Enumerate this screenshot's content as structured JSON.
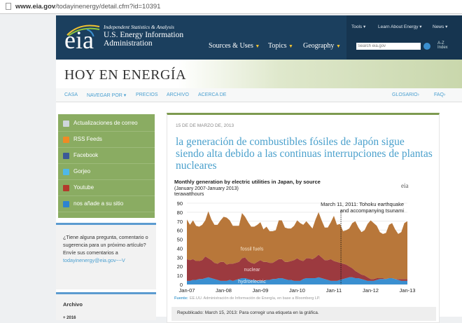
{
  "browser": {
    "url_host": "www.eia.gov",
    "url_path": "/todayinenergy/detail.cfm?id=10391"
  },
  "header": {
    "logo": "eia",
    "tagline": "Independent Statistics & Analysis",
    "org_line1": "U.S. Energy Information",
    "org_line2": "Administration",
    "nav": [
      "Sources & Uses",
      "Topics",
      "Geography"
    ],
    "top_links": [
      "Tools",
      "Learn About Energy",
      "News"
    ],
    "search_placeholder": "Search eia.gov",
    "az_index": "A-Z Index"
  },
  "banner": {
    "title": "HOY EN ENERGÍA"
  },
  "subnav": {
    "items": [
      "CASA",
      "NAVEGAR POR",
      "PRECIOS",
      "ARCHIVO",
      "ACERCA DE"
    ],
    "right": [
      "GLOSARIO›",
      "FAQ›"
    ]
  },
  "sidebar": {
    "items": [
      {
        "label": "Actualizaciones de correo",
        "icon": "email-icon",
        "color": "#cfd6dc"
      },
      {
        "label": "RSS Feeds",
        "icon": "rss-icon",
        "color": "#f08a24"
      },
      {
        "label": "Facebook",
        "icon": "facebook-icon",
        "color": "#3b5998"
      },
      {
        "label": "Gorjeo",
        "icon": "twitter-icon",
        "color": "#4fb8e8"
      },
      {
        "label": "Youtube",
        "icon": "youtube-icon",
        "color": "#b33a2c"
      },
      {
        "label": "nos añade a su sitio",
        "icon": "plus-icon",
        "color": "#2d83d0"
      }
    ],
    "question": "¿Tiene alguna pregunta, comentario o sugerencia para un próximo artículo? Envíe sus comentarios a",
    "email": "todayinenergy@eia.gov~~V",
    "archive_title": "Archivo",
    "archive_year": "2016"
  },
  "article": {
    "date": "15 DE DE MARZO DE, 2013",
    "title": "la generación de combustibles fósiles de Japón sigue siendo alta debido a las continuas interrupciones de plantas nucleares",
    "source_label": "Fuente:",
    "source": "EE.UU. Administración de Información de Energía, en base a Bloomberg LP.",
    "republished": "Republicado: March 15, 2013: Para corregir una etiqueta en la gráfica."
  },
  "chart_data": {
    "type": "area",
    "title": "Monthly generation by electric utilities in Japan, by source",
    "subtitle": "(January  2007-January  2013)",
    "ylabel": "terawatthours",
    "logo": "eia",
    "ylim": [
      0,
      90
    ],
    "yticks": [
      0,
      10,
      20,
      30,
      40,
      50,
      60,
      70,
      80,
      90
    ],
    "xticks": [
      "Jan-07",
      "Jan-08",
      "Jan-09",
      "Jan-10",
      "Jan-11",
      "Jan-12",
      "Jan-13"
    ],
    "x_start": "Jan-2007",
    "x_end": "Jan-2013",
    "stacked": true,
    "annotation": {
      "text1": "March 11, 2011:  Tohoku  earthquake",
      "text2": "and accompanying  tsunami",
      "month_index": 50.3
    },
    "series": [
      {
        "name": "hydroelectric",
        "color": "#3a8fd0",
        "values": [
          4,
          4,
          5,
          5,
          6,
          6,
          7,
          8,
          7,
          6,
          5,
          4,
          4,
          4,
          5,
          4,
          5,
          6,
          7,
          7,
          6,
          5,
          5,
          4,
          4,
          4,
          5,
          5,
          6,
          6,
          7,
          7,
          6,
          5,
          5,
          4,
          4,
          4,
          6,
          7,
          7,
          7,
          7,
          8,
          7,
          6,
          5,
          4,
          4,
          4,
          5,
          6,
          7,
          8,
          8,
          7,
          7,
          6,
          5,
          4,
          4,
          4,
          5,
          6,
          6,
          6,
          7,
          7,
          6,
          5,
          4,
          4,
          4
        ]
      },
      {
        "name": "nuclear",
        "color": "#9c3a3f",
        "values": [
          24,
          23,
          23,
          21,
          20,
          21,
          24,
          21,
          20,
          18,
          18,
          21,
          21,
          18,
          18,
          19,
          19,
          19,
          22,
          23,
          20,
          19,
          18,
          21,
          23,
          21,
          20,
          19,
          18,
          20,
          21,
          21,
          19,
          20,
          21,
          23,
          25,
          23,
          20,
          22,
          22,
          21,
          23,
          25,
          23,
          21,
          22,
          24,
          22,
          21,
          19,
          17,
          15,
          12,
          10,
          8,
          6,
          5,
          5,
          4,
          2,
          2,
          2,
          1,
          1,
          0,
          0,
          0,
          0,
          1,
          2,
          2,
          2
        ]
      },
      {
        "name": "fossil fuels",
        "color": "#b8773a",
        "values": [
          44,
          39,
          43,
          39,
          38,
          39,
          40,
          52,
          45,
          42,
          43,
          46,
          50,
          52,
          48,
          42,
          41,
          40,
          50,
          45,
          43,
          40,
          41,
          41,
          42,
          36,
          39,
          35,
          35,
          34,
          43,
          43,
          38,
          37,
          36,
          38,
          42,
          41,
          40,
          41,
          37,
          34,
          42,
          47,
          41,
          36,
          36,
          41,
          50,
          41,
          43,
          36,
          38,
          42,
          50,
          55,
          50,
          47,
          50,
          59,
          65,
          62,
          58,
          51,
          49,
          51,
          59,
          61,
          55,
          50,
          52,
          62,
          64
        ]
      }
    ]
  }
}
